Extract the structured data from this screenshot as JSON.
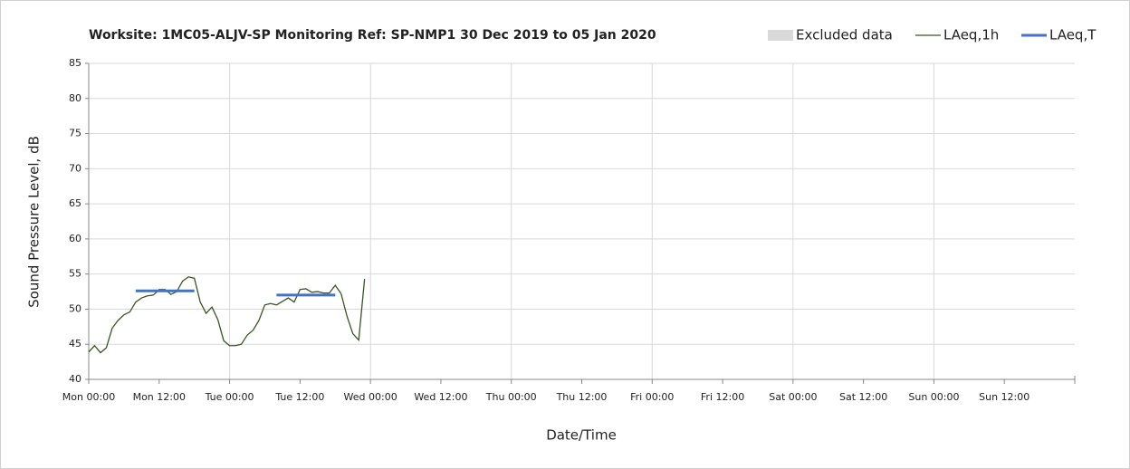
{
  "chart_data": {
    "type": "line",
    "title": "Worksite: 1MC05-ALJV-SP    Monitoring Ref: SP-NMP1      30 Dec 2019 to 05 Jan 2020",
    "xlabel": "Date/Time",
    "ylabel": "Sound Pressure Level, dB",
    "xlim": [
      0,
      168
    ],
    "xticks": [
      {
        "value": 0,
        "label": "Mon 00:00"
      },
      {
        "value": 12,
        "label": "Mon 12:00"
      },
      {
        "value": 24,
        "label": "Tue 00:00"
      },
      {
        "value": 36,
        "label": "Tue 12:00"
      },
      {
        "value": 48,
        "label": "Wed 00:00"
      },
      {
        "value": 60,
        "label": "Wed 12:00"
      },
      {
        "value": 72,
        "label": "Thu 00:00"
      },
      {
        "value": 84,
        "label": "Thu 12:00"
      },
      {
        "value": 96,
        "label": "Fri 00:00"
      },
      {
        "value": 108,
        "label": "Fri 12:00"
      },
      {
        "value": 120,
        "label": "Sat 00:00"
      },
      {
        "value": 132,
        "label": "Sat 12:00"
      },
      {
        "value": 144,
        "label": "Sun 00:00"
      },
      {
        "value": 156,
        "label": "Sun 12:00"
      }
    ],
    "ylim": [
      40,
      85
    ],
    "yticks": [
      40,
      45,
      50,
      55,
      60,
      65,
      70,
      75,
      80,
      85
    ],
    "grid": true,
    "series": [
      {
        "name": "Excluded data",
        "color": "#d9d9d9",
        "kind": "area",
        "x": [],
        "values": []
      },
      {
        "name": "LAeq,1h",
        "color": "#375623",
        "kind": "line",
        "x": [
          0,
          1,
          2,
          3,
          4,
          5,
          6,
          7,
          8,
          9,
          10,
          11,
          12,
          13,
          14,
          15,
          16,
          17,
          18,
          19,
          20,
          21,
          22,
          23,
          24,
          25,
          26,
          27,
          28,
          29,
          30,
          31,
          32,
          33,
          34,
          35,
          36,
          37,
          38,
          39,
          40,
          41,
          42,
          43,
          44,
          45,
          46,
          47
        ],
        "values": [
          43.9,
          44.8,
          43.8,
          44.5,
          47.3,
          48.4,
          49.2,
          49.6,
          51.0,
          51.6,
          51.9,
          52.0,
          52.8,
          52.8,
          52.1,
          52.5,
          54.0,
          54.6,
          54.4,
          51.0,
          49.4,
          50.3,
          48.5,
          45.5,
          44.8,
          44.8,
          45.0,
          46.3,
          47.0,
          48.4,
          50.6,
          50.8,
          50.6,
          51.1,
          51.6,
          51.0,
          52.8,
          52.9,
          52.4,
          52.5,
          52.3,
          52.3,
          53.4,
          52.2,
          49.0,
          46.5,
          45.6,
          54.3
        ]
      },
      {
        "name": "LAeq,T",
        "color": "#4472c4",
        "kind": "line",
        "x": [
          8,
          18,
          null,
          32,
          42
        ],
        "values": [
          52.6,
          52.6,
          null,
          52.0,
          52.0
        ]
      }
    ]
  }
}
